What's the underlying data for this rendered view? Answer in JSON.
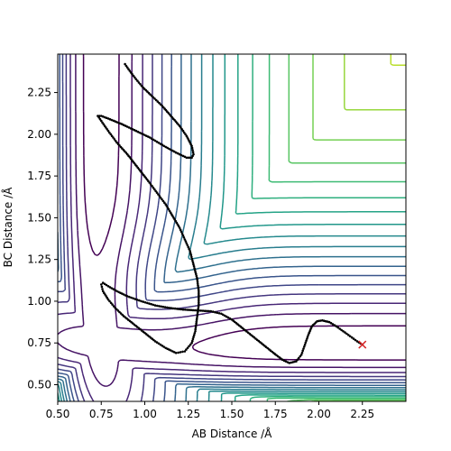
{
  "chart_data": {
    "type": "contour",
    "title": "",
    "xlabel": "AB Distance /Å",
    "ylabel": "BC Distance /Å",
    "xlim": [
      0.5,
      2.5
    ],
    "ylim": [
      0.4,
      2.48
    ],
    "x_ticks": [
      "0.50",
      "0.75",
      "1.00",
      "1.25",
      "1.50",
      "1.75",
      "2.00",
      "2.25"
    ],
    "y_ticks": [
      "0.50",
      "0.75",
      "1.00",
      "1.25",
      "1.50",
      "1.75",
      "2.00",
      "2.25"
    ],
    "grid": false,
    "legend": "none",
    "colormap": "viridis",
    "colors": [
      "#440154",
      "#482878",
      "#3e4989",
      "#31688e",
      "#26828e",
      "#1f9e89",
      "#35b779",
      "#6ece58",
      "#b5de2b",
      "#fde725"
    ],
    "surface": {
      "description_levels": 20,
      "valley_ab_floor": 0.74,
      "valley_bc_floor": 0.74
    },
    "trajectory": [
      [
        2.25,
        0.74
      ],
      [
        2.22,
        0.76
      ],
      [
        2.18,
        0.79
      ],
      [
        2.14,
        0.82
      ],
      [
        2.1,
        0.85
      ],
      [
        2.06,
        0.875
      ],
      [
        2.02,
        0.885
      ],
      [
        1.99,
        0.88
      ],
      [
        1.96,
        0.85
      ],
      [
        1.94,
        0.8
      ],
      [
        1.92,
        0.74
      ],
      [
        1.9,
        0.68
      ],
      [
        1.87,
        0.64
      ],
      [
        1.83,
        0.63
      ],
      [
        1.79,
        0.65
      ],
      [
        1.74,
        0.69
      ],
      [
        1.68,
        0.74
      ],
      [
        1.62,
        0.79
      ],
      [
        1.56,
        0.84
      ],
      [
        1.5,
        0.89
      ],
      [
        1.44,
        0.925
      ],
      [
        1.38,
        0.94
      ],
      [
        1.3,
        0.945
      ],
      [
        1.22,
        0.95
      ],
      [
        1.14,
        0.96
      ],
      [
        1.06,
        0.975
      ],
      [
        0.98,
        1.0
      ],
      [
        0.9,
        1.03
      ],
      [
        0.84,
        1.06
      ],
      [
        0.79,
        1.09
      ],
      [
        0.76,
        1.11
      ],
      [
        0.75,
        1.1
      ],
      [
        0.76,
        1.06
      ],
      [
        0.79,
        1.01
      ],
      [
        0.83,
        0.96
      ],
      [
        0.88,
        0.91
      ],
      [
        0.94,
        0.86
      ],
      [
        1.0,
        0.81
      ],
      [
        1.06,
        0.76
      ],
      [
        1.12,
        0.72
      ],
      [
        1.18,
        0.69
      ],
      [
        1.23,
        0.7
      ],
      [
        1.27,
        0.75
      ],
      [
        1.29,
        0.82
      ],
      [
        1.3,
        0.9
      ],
      [
        1.31,
        0.98
      ],
      [
        1.31,
        1.06
      ],
      [
        1.3,
        1.14
      ],
      [
        1.28,
        1.22
      ],
      [
        1.26,
        1.3
      ],
      [
        1.23,
        1.37
      ],
      [
        1.2,
        1.44
      ],
      [
        1.16,
        1.51
      ],
      [
        1.12,
        1.58
      ],
      [
        1.07,
        1.65
      ],
      [
        1.02,
        1.72
      ],
      [
        0.96,
        1.8
      ],
      [
        0.9,
        1.88
      ],
      [
        0.84,
        1.95
      ],
      [
        0.79,
        2.02
      ],
      [
        0.75,
        2.08
      ],
      [
        0.73,
        2.11
      ],
      [
        0.75,
        2.11
      ],
      [
        0.8,
        2.09
      ],
      [
        0.87,
        2.06
      ],
      [
        0.95,
        2.02
      ],
      [
        1.03,
        1.98
      ],
      [
        1.11,
        1.93
      ],
      [
        1.18,
        1.89
      ],
      [
        1.24,
        1.86
      ],
      [
        1.27,
        1.86
      ],
      [
        1.28,
        1.88
      ],
      [
        1.27,
        1.93
      ],
      [
        1.24,
        1.99
      ],
      [
        1.2,
        2.05
      ],
      [
        1.15,
        2.11
      ],
      [
        1.1,
        2.17
      ],
      [
        1.04,
        2.23
      ],
      [
        0.99,
        2.28
      ],
      [
        0.95,
        2.33
      ],
      [
        0.92,
        2.37
      ],
      [
        0.9,
        2.4
      ],
      [
        0.88,
        2.43
      ]
    ],
    "end_marker": {
      "x": 2.25,
      "y": 0.74,
      "symbol": "x",
      "color": "#d62728"
    }
  }
}
